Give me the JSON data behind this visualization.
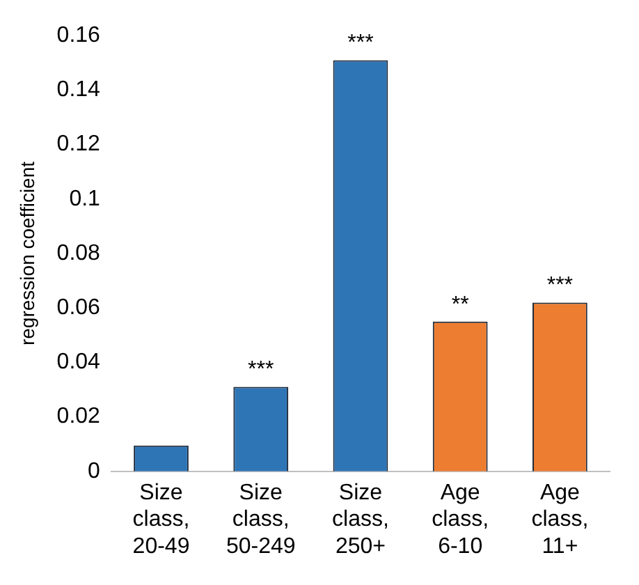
{
  "chart_data": {
    "type": "bar",
    "ylabel": "regression coefficient",
    "categories": [
      "Size class, 20-49",
      "Size class, 50-249",
      "Size class, 250+",
      "Age class, 6-10",
      "Age class, 11+"
    ],
    "values": [
      0.0095,
      0.031,
      0.151,
      0.055,
      0.062
    ],
    "colors": [
      "#2e75b6",
      "#2e75b6",
      "#2e75b6",
      "#ed7d31",
      "#ed7d31"
    ],
    "ylim": [
      0,
      0.16
    ],
    "yticks": [
      0,
      0.02,
      0.04,
      0.06,
      0.08,
      0.1,
      0.12,
      0.14,
      0.16
    ],
    "grid": false,
    "legend": false,
    "annotations": [
      {
        "text": "***",
        "x": "Size class, 50-249",
        "y": 0.031
      },
      {
        "text": "***",
        "x": "Size class, 250+",
        "y": 0.151
      },
      {
        "text": "**",
        "x": "Age class, 6-10",
        "y": 0.055
      },
      {
        "text": "***",
        "x": "Age class, 11+",
        "y": 0.062
      }
    ]
  }
}
